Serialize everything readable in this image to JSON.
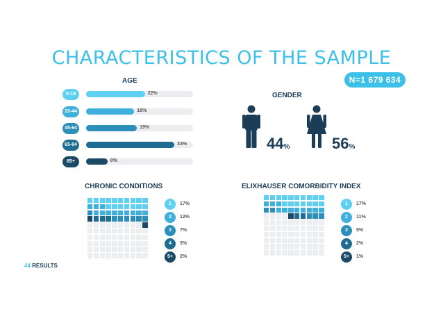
{
  "title": "CHARACTERISTICS OF THE SAMPLE",
  "n_label": "N=1 679 634",
  "age": {
    "title": "AGE",
    "items": [
      {
        "category": "0-19",
        "percent": 22,
        "label": "22%",
        "color": "#5ed0f2"
      },
      {
        "category": "20-44",
        "percent": 18,
        "label": "18%",
        "color": "#3fb0dc"
      },
      {
        "category": "45-64",
        "percent": 19,
        "label": "19%",
        "color": "#2b8fba"
      },
      {
        "category": "65-84",
        "percent": 33,
        "label": "33%",
        "color": "#1f6b91"
      },
      {
        "category": "85+",
        "percent": 8,
        "label": "8%",
        "color": "#1b4a68"
      }
    ]
  },
  "gender": {
    "title": "GENDER",
    "male": {
      "value": "44",
      "unit": "%"
    },
    "female": {
      "value": "56",
      "unit": "%"
    },
    "color": "#1b3d57"
  },
  "chronic": {
    "title": "CHRONIC CONDITIONS",
    "legend": [
      {
        "label": "1",
        "percent": 17,
        "text": "17%",
        "color": "#5ed0f2"
      },
      {
        "label": "2",
        "percent": 12,
        "text": "12%",
        "color": "#3fb0dc"
      },
      {
        "label": "3",
        "percent": 7,
        "text": "7%",
        "color": "#2b8fba"
      },
      {
        "label": "4",
        "percent": 3,
        "text": "3%",
        "color": "#1f6b91"
      },
      {
        "label": "5+",
        "percent": 2,
        "text": "2%",
        "color": "#1b4a68"
      }
    ]
  },
  "elix": {
    "title": "ELIXHAUSER COMORBIDITY INDEX",
    "legend": [
      {
        "label": "1",
        "percent": 17,
        "text": "17%",
        "color": "#5ed0f2"
      },
      {
        "label": "2",
        "percent": 11,
        "text": "11%",
        "color": "#3fb0dc"
      },
      {
        "label": "3",
        "percent": 5,
        "text": "5%",
        "color": "#2b8fba"
      },
      {
        "label": "4",
        "percent": 2,
        "text": "2%",
        "color": "#1f6b91"
      },
      {
        "label": "5+",
        "percent": 1,
        "text": "1%",
        "color": "#1b4a68"
      }
    ]
  },
  "footer": {
    "hash": "#4",
    "text": "RESULTS"
  },
  "chart_data": [
    {
      "type": "bar",
      "title": "AGE",
      "categories": [
        "0-19",
        "20-44",
        "45-64",
        "65-84",
        "85+"
      ],
      "values": [
        22,
        18,
        19,
        33,
        8
      ],
      "xlim": [
        0,
        40
      ]
    },
    {
      "type": "pie",
      "title": "GENDER",
      "categories": [
        "Male",
        "Female"
      ],
      "values": [
        44,
        56
      ]
    },
    {
      "type": "table",
      "title": "CHRONIC CONDITIONS",
      "categories": [
        "1",
        "2",
        "3",
        "4",
        "5+"
      ],
      "values": [
        17,
        12,
        7,
        3,
        2
      ],
      "grid": "waffle 10x10"
    },
    {
      "type": "table",
      "title": "ELIXHAUSER COMORBIDITY INDEX",
      "categories": [
        "1",
        "2",
        "3",
        "4",
        "5+"
      ],
      "values": [
        17,
        11,
        5,
        2,
        1
      ],
      "grid": "waffle 10x10"
    }
  ]
}
